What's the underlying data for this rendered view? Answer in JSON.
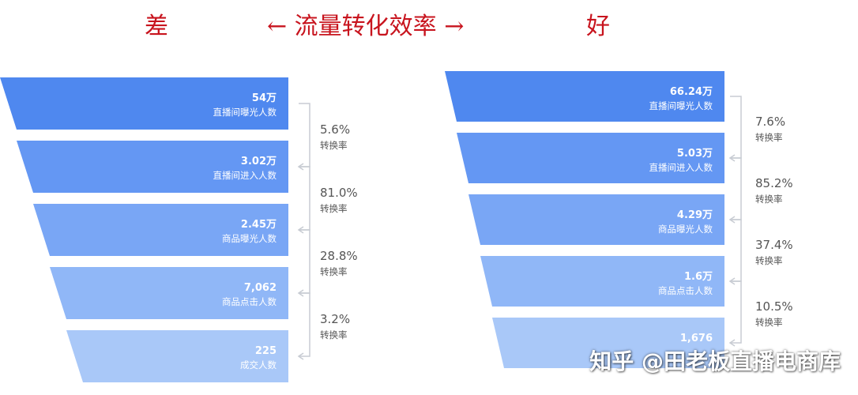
{
  "header": {
    "left_label": "差",
    "middle_label": "← 流量转化效率 →",
    "right_label": "好"
  },
  "watermark": "知乎 @田老板直播电商库",
  "colors": {
    "title_red": "#c8141e",
    "stage_1": "#4f88ef",
    "stage_2": "#6497f3",
    "stage_3": "#79a6f5",
    "stage_4": "#90b7f7",
    "stage_5": "#a9c8f8",
    "rate_text": "#555555",
    "bracket": "#c8ccd3"
  },
  "chart_data": [
    {
      "type": "funnel",
      "panel": "差",
      "stages": [
        {
          "value": "54万",
          "label": "直播间曝光人数"
        },
        {
          "value": "3.02万",
          "label": "直播间进入人数"
        },
        {
          "value": "2.45万",
          "label": "商品曝光人数"
        },
        {
          "value": "7,062",
          "label": "商品点击人数"
        },
        {
          "value": "225",
          "label": "成交人数"
        }
      ],
      "rates": [
        {
          "value": "5.6%",
          "label": "转换率"
        },
        {
          "value": "81.0%",
          "label": "转换率"
        },
        {
          "value": "28.8%",
          "label": "转换率"
        },
        {
          "value": "3.2%",
          "label": "转换率"
        }
      ]
    },
    {
      "type": "funnel",
      "panel": "好",
      "stages": [
        {
          "value": "66.24万",
          "label": "直播间曝光人数"
        },
        {
          "value": "5.03万",
          "label": "直播间进入人数"
        },
        {
          "value": "4.29万",
          "label": "商品曝光人数"
        },
        {
          "value": "1.6万",
          "label": "商品点击人数"
        },
        {
          "value": "1,676",
          "label": ""
        }
      ],
      "rates": [
        {
          "value": "7.6%",
          "label": "转换率"
        },
        {
          "value": "85.2%",
          "label": "转换率"
        },
        {
          "value": "37.4%",
          "label": "转换率"
        },
        {
          "value": "10.5%",
          "label": "转换率"
        }
      ]
    }
  ]
}
